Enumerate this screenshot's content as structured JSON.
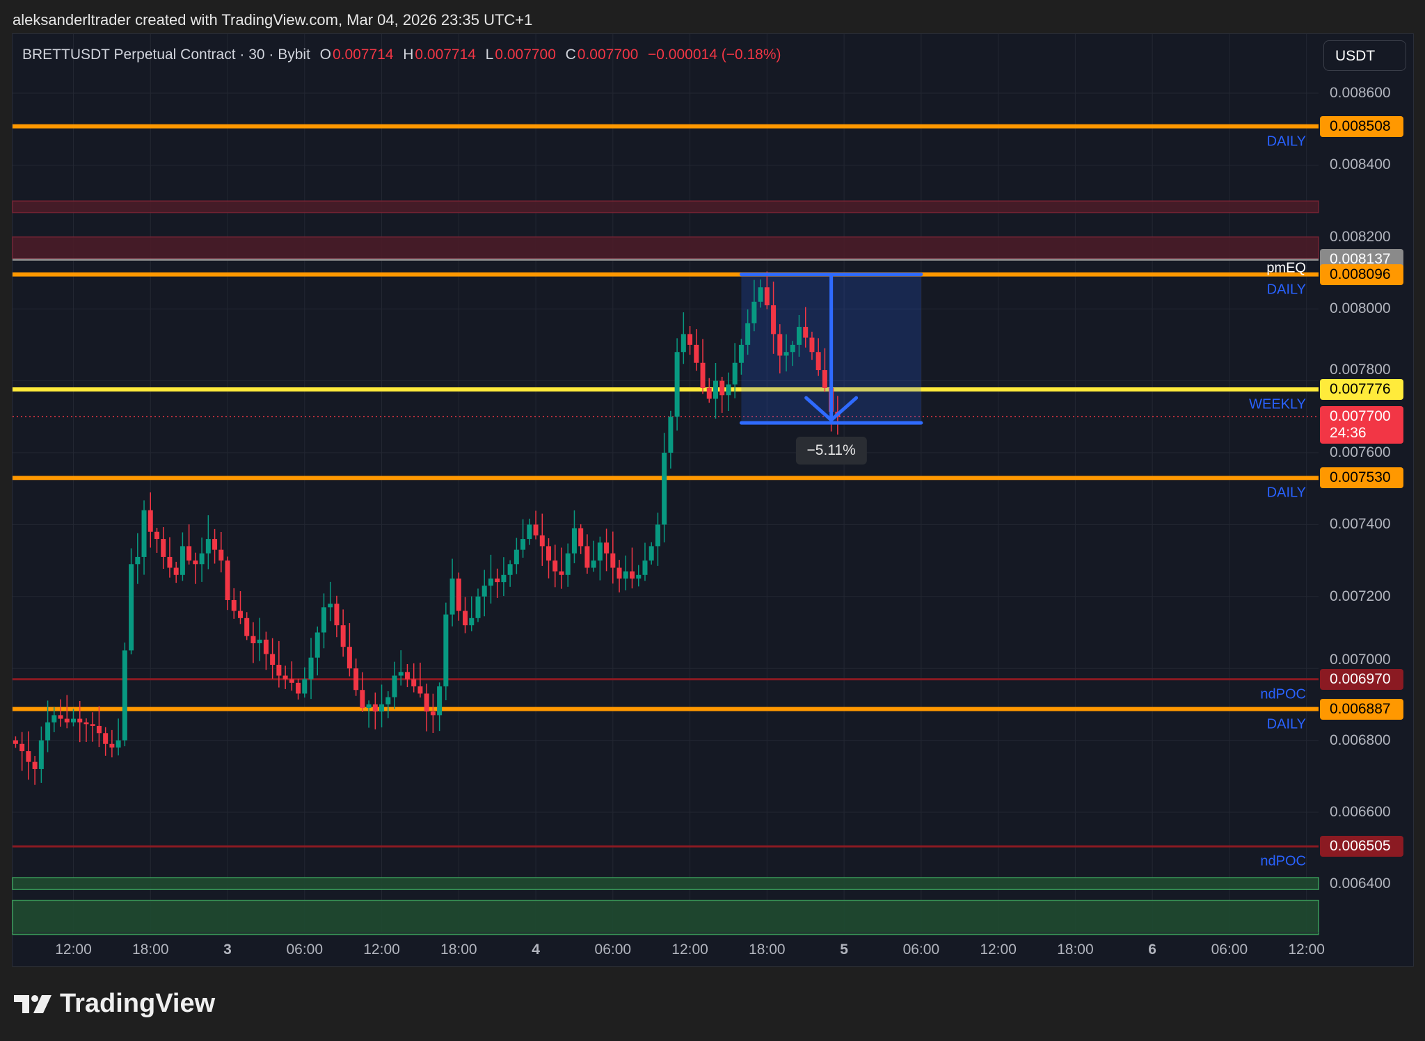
{
  "caption": "aleksanderltrader created with TradingView.com, Mar 04, 2026 23:35 UTC+1",
  "legend": {
    "symbol": "BRETTUSDT Perpetual Contract · 30 · Bybit",
    "o_label": "O",
    "o": "0.007714",
    "h_label": "H",
    "h": "0.007714",
    "l_label": "L",
    "l": "0.007700",
    "c_label": "C",
    "c": "0.007700",
    "change": "−0.000014 (−0.18%)"
  },
  "currency_button": "USDT",
  "logo_text": "TradingView",
  "colors": {
    "up": "#089981",
    "down": "#f23645",
    "orange": "#ff9800",
    "yellow": "#ffeb3b",
    "blue": "#2962ff",
    "ndpoc": "#8b1a22"
  },
  "chart_data": {
    "type": "candlestick",
    "interval": "30",
    "start": "Mar 2 07:30",
    "ylim": [
      0.00632,
      0.0087
    ],
    "y_ticks": [
      "0.008600",
      "0.008400",
      "0.008200",
      "0.008000",
      "0.007800",
      "0.007600",
      "0.007400",
      "0.007200",
      "0.007000",
      "0.006800",
      "0.006600",
      "0.006400"
    ],
    "x_ticks": [
      {
        "label": "12:00",
        "index": 9
      },
      {
        "label": "18:00",
        "index": 21
      },
      {
        "label": "3",
        "index": 33
      },
      {
        "label": "06:00",
        "index": 45
      },
      {
        "label": "12:00",
        "index": 57
      },
      {
        "label": "18:00",
        "index": 69
      },
      {
        "label": "4",
        "index": 81
      },
      {
        "label": "06:00",
        "index": 93
      },
      {
        "label": "12:00",
        "index": 105
      },
      {
        "label": "18:00",
        "index": 117
      },
      {
        "label": "5",
        "index": 129
      },
      {
        "label": "06:00",
        "index": 141
      },
      {
        "label": "12:00",
        "index": 153
      },
      {
        "label": "18:00",
        "index": 165
      },
      {
        "label": "6",
        "index": 177
      },
      {
        "label": "06:00",
        "index": 189
      },
      {
        "label": "12:00",
        "index": 201
      }
    ],
    "first_open": 0.0068,
    "close": [
      0.00679,
      0.00677,
      0.00674,
      0.00672,
      0.0068,
      0.00685,
      0.00687,
      0.00686,
      0.00685,
      0.00686,
      0.00685,
      0.006845,
      0.00684,
      0.00682,
      0.00679,
      0.00678,
      0.0068,
      0.00705,
      0.00729,
      0.00731,
      0.00744,
      0.00738,
      0.00736,
      0.00731,
      0.00728,
      0.00726,
      0.00734,
      0.0073,
      0.00729,
      0.00732,
      0.00736,
      0.00733,
      0.0073,
      0.00719,
      0.00716,
      0.00714,
      0.00709,
      0.00707,
      0.00708,
      0.00704,
      0.00701,
      0.00698,
      0.00697,
      0.00696,
      0.00693,
      0.00697,
      0.00703,
      0.0071,
      0.00717,
      0.00718,
      0.00712,
      0.00706,
      0.007,
      0.00694,
      0.00689,
      0.0069,
      0.00688,
      0.0069,
      0.00692,
      0.00698,
      0.00699,
      0.00697,
      0.00695,
      0.00693,
      0.00688,
      0.00687,
      0.00695,
      0.00715,
      0.00725,
      0.00716,
      0.00712,
      0.00714,
      0.0072,
      0.00723,
      0.00725,
      0.00724,
      0.00726,
      0.00729,
      0.00733,
      0.00736,
      0.0074,
      0.00737,
      0.00734,
      0.0073,
      0.00727,
      0.00726,
      0.00732,
      0.00739,
      0.00734,
      0.00728,
      0.0073,
      0.00735,
      0.00732,
      0.00728,
      0.00725,
      0.00727,
      0.00725,
      0.00726,
      0.0073,
      0.00734,
      0.0074,
      0.0076,
      0.0077,
      0.00788,
      0.00793,
      0.0079,
      0.00785,
      0.00778,
      0.00775,
      0.0078,
      0.00776,
      0.00779,
      0.00785,
      0.0079,
      0.00796,
      0.00802,
      0.00806,
      0.00801,
      0.00793,
      0.00787,
      0.00788,
      0.0079,
      0.00795,
      0.00792,
      0.00788,
      0.00783,
      0.00778,
      0.007714,
      0.0077
    ]
  },
  "levels": [
    {
      "price": 0.008508,
      "label": "0.008508",
      "tag": "DAILY",
      "kind": "daily"
    },
    {
      "price": 0.008137,
      "label": "0.008137",
      "tag": "",
      "kind": "pmeq-line"
    },
    {
      "price": 0.008096,
      "label": "0.008096",
      "tag": "DAILY",
      "tag2": "pmEQ",
      "kind": "daily"
    },
    {
      "price": 0.007776,
      "label": "0.007776",
      "tag": "WEEKLY",
      "kind": "weekly"
    },
    {
      "price": 0.00753,
      "label": "0.007530",
      "tag": "DAILY",
      "kind": "daily"
    },
    {
      "price": 0.00697,
      "label": "0.006970",
      "tag": "ndPOC",
      "kind": "ndpoc"
    },
    {
      "price": 0.006887,
      "label": "0.006887",
      "tag": "DAILY",
      "kind": "daily"
    },
    {
      "price": 0.006505,
      "label": "0.006505",
      "tag": "ndPOC",
      "kind": "ndpoc"
    }
  ],
  "zones": [
    {
      "top": 0.0083,
      "bottom": 0.008268,
      "kind": "supply"
    },
    {
      "top": 0.0082,
      "bottom": 0.00814,
      "kind": "supply"
    },
    {
      "top": 0.006418,
      "bottom": 0.006385,
      "kind": "demand"
    },
    {
      "top": 0.006355,
      "bottom": 0.00626,
      "kind": "demand"
    }
  ],
  "last_price": {
    "value": "0.007700",
    "countdown": "24:36",
    "price": 0.0077
  },
  "measure": {
    "from_price": 0.008096,
    "to_price": 0.007683,
    "start_index": 113,
    "end_index": 141,
    "label": "−5.11%"
  }
}
